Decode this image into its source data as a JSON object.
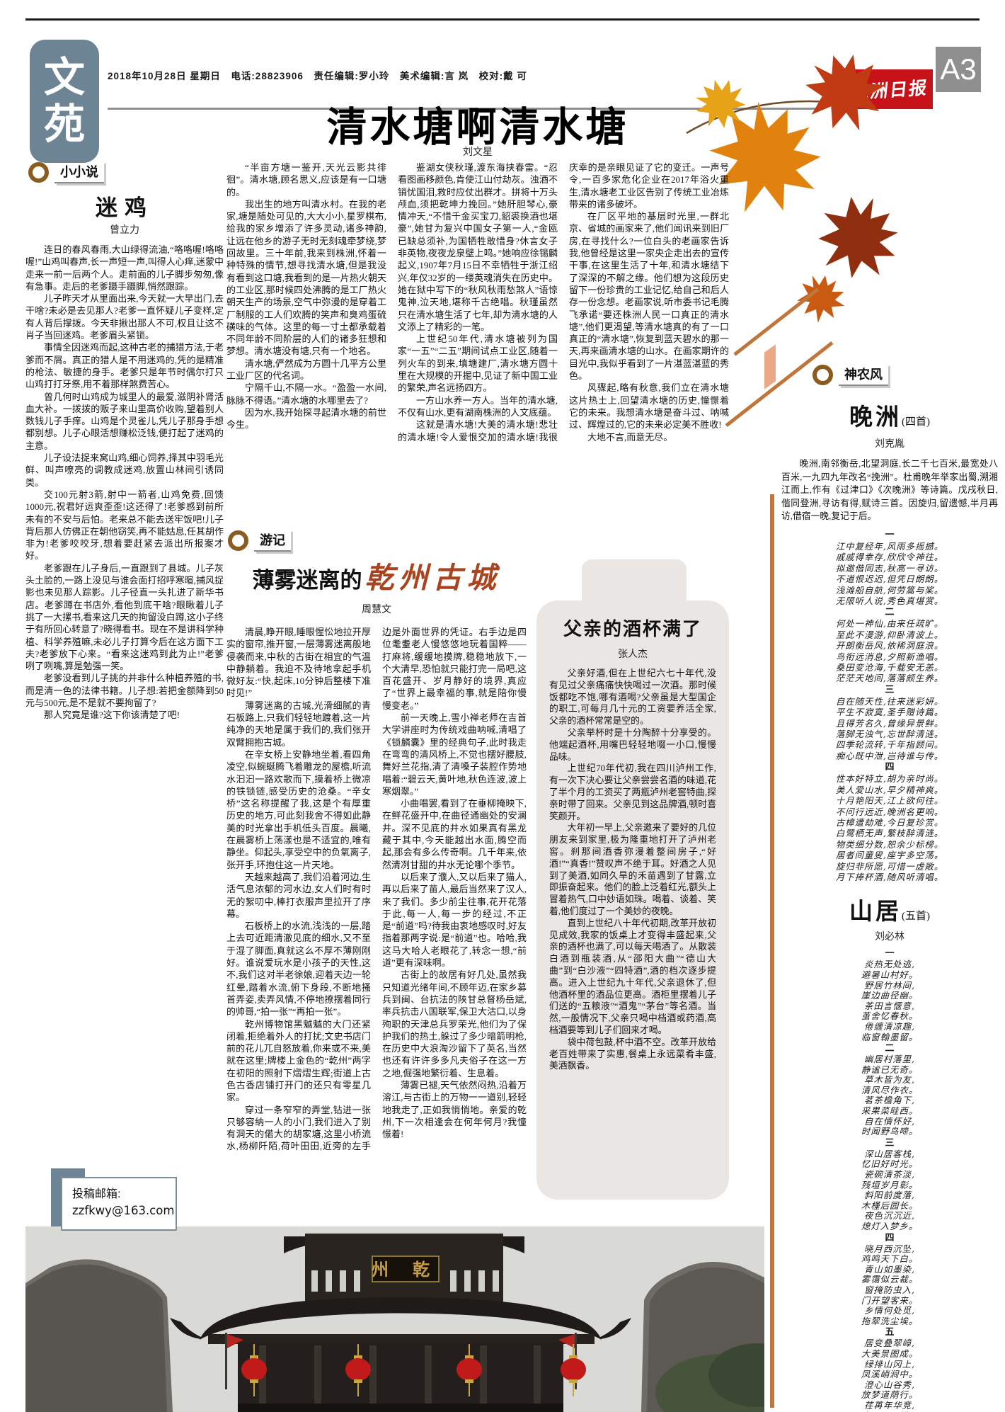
{
  "header": {
    "section_logo_chars": [
      "文",
      "苑"
    ],
    "dateline": "2018年10月28日 星期日　电话:28823906　责任编辑:罗小玲　美术编辑:言 岚　校对:戴 可",
    "paper_name": "株洲日报",
    "page_number": "A3"
  },
  "colors": {
    "brand_red": "#c81219",
    "page_badge_gray": "#8f8f8f",
    "logo_blue_gray": "#6d8494",
    "decor_orange": "#c0763a",
    "travel_title_red": "#a9441f",
    "essay_box_gray": "#e9e6e3",
    "label_brown": "#8a5c20"
  },
  "main_article": {
    "title": "清水塘啊清水塘",
    "author": "刘文星",
    "paragraphs": [
      "“半亩方塘一鉴开,天光云影共徘徊”。清水塘,顾名思义,应该是有一口塘的。",
      "我出生的地方叫清水村。在我的老家,塘是随处可见的,大大小小,星罗棋布,给我的家乡增添了许多灵动,诸多神韵,让远在他乡的游子无时无刻魂牵梦绕,梦回故里。三十年前,我来到株洲,怀着一种特殊的情节,想寻找清水塘,但是我没有看到这口塘,我看到的是一片热火朝天的工业区,那时候四处沸腾的是工厂热火朝天生产的场景,空气中弥漫的是穿着工厂制服的工人们欢腾的笑声和臭鸡蛋硫磺味的气体。这里的每一寸土都承载着不同年龄不同阶层的人们的诸多狂想和梦想。清水塘没有塘,只有一个地名。",
      "清水塘,俨然成为方圆十几平方公里工业厂区的代名词。",
      "宁隔千山,不隔一水。“盈盈一水间,脉脉不得语。”清水塘的水哪里去了?",
      "因为水,我开始探寻起清水塘的前世今生。",
      "鉴湖女侠秋瑾,渡东海挟春雷。“忍看图画移颜色,肯使江山付劫灰。浊酒不销忧国泪,救时应仗出群才。拼将十万头颅血,须把乾坤力挽回。”她肝胆琴心,豪情冲天,“不惜千金买宝刀,貂裘换酒也堪豪”,她甘为复兴中国女子第一人,“金瓯已缺总须补,为国牺牲敢惜身?休言女子非英物,夜夜龙泉壁上鸣。”她响应徐锡麟起义,1907年7月15日不幸牺牲于浙江绍兴,年仅32岁的一缕英魂消失在历史中。她在狱中写下的“秋风秋雨愁煞人”语惊鬼神,泣天地,堪称千古绝唱。秋瑾虽然只在清水塘生活了七年,却为清水塘的人文添上了精彩的一笔。",
      "上世纪50年代,清水塘被列为国家“一五”“二五”期间试点工业区,随着一列火车的到来,填塘建厂,清水塘方圆十里在大规模的开掘中,见证了新中国工业的繁荣,声名远扬四方。",
      "一方山水养一方人。当年的清水塘,不仅有山水,更有湖南株洲的人文底蕴。",
      "这就是清水塘!大美的清水塘!悲壮的清水塘!令人爱恨交加的清水塘!我很庆幸的是亲眼见证了它的变迁。一声号令,一百多家危化企业在2017年浴火重生,清水塘老工业区告别了传统工业冶炼带来的诸多破坏。",
      "在厂区平地的基层时光里,一群北京、省城的画家来了,他们闻讯来到旧厂房,在寻找什么?一位白头的老画家告诉我,他曾经是这里一家央企走出去的宣传干事,在这里生活了十年,和清水塘结下了深深的不解之缘。他们想为这段历史留下一份珍贵的工业记忆,给自己和后人存一份念想。老画家说,听市委书记毛腾飞承诺“要还株洲人民一口真正的清水塘”,他们更渴望,等清水塘真的有了一口真正的“清水塘”,恢复到蓝天碧水的那一天,再来画清水塘的山水。在画家期许的目光中,我似乎看到了一片湛蓝湛蓝的秀色。",
      "风骤起,略有秋意,我们立在清水塘这片热土上,回望清水塘的历史,憧憬着它的未来。我想清水塘是奋斗过、呐喊过、辉煌过的,它的未来必定美不胜收!",
      "大地不言,而意无尽。"
    ]
  },
  "fiction": {
    "label": "小小说",
    "title": "迷鸡",
    "author": "曾立力",
    "paragraphs": [
      "连日的春风春雨,大山绿得流油,“咯咯喔!咯咯喔!”山鸡叫春声,长一声短一声,叫得人心痒,迷蒙中走来一前一后两个人。走前面的儿子脚步匆匆,像有急事。走后的老爹蹑手蹑脚,悄然跟踪。",
      "儿子昨天才从里面出来,今天就一大早出门,去干啥?未必是去见那人?老爹一直怀疑儿子变样,定有人背后撑拨。今天非揪出那人不可,权且让这不肖子当回迷鸡。老爹眉头紧锁。",
      "事情全因迷鸡而起,这种古老的捕猎方法,于老爹而不屑。真正的猎人是不用迷鸡的,凭的是精准的枪法、敏捷的身手。老爹只是年节时偶尔打只山鸡打打牙祭,用不着那样煞费苦心。",
      "曾几何时山鸡成为城里人的最爱,滋阴补肾活血大补。一拨拨的贩子来山里高价收购,望着别人数钱儿子手痒。山鸡是个灵雀儿,凭儿子那身手想都别想。儿子心眼活想赚松泛钱,便打起了迷鸡的主意。",
      "儿子设法捉来窝山鸡,细心饲养,择其中羽毛光鲜、叫声嘹亮的调教成迷鸡,放置山林间引诱同类。",
      "交100元射3箭,射中一箭者,山鸡免费,回馈1000元,祝君好运爽歪歪!这还得了!老爹感到前所未有的不安与后怕。老来总不能去送牢饭吧!儿子背后那人仿佛正在朝他窃笑,再不能姑息,任其胡作非为!老爹咬咬牙,想着要赶紧去派出所报案才好。",
      "老爹跟在儿子身后,一直跟到了县城。儿子灰头土脸的,一路上没见与谁会面打招呼寒暄,捕风捉影也未见那人踪影。儿子径直一头扎进了新华书店。老爹蹲在书店外,看他到底干啥?眼瞅着儿子挑了一大摞书,看来这几天的拘留没白蹲,这小子终于有所回心转意了?晓得看书。现在不是讲科学种植、科学养殖嘛,未必儿子打算今后在这方面下工夫?老爹放下心来。“看来这迷鸡到此为止!”老爹咧了咧嘴,算是勉强一笑。",
      "老爹没看到儿子挑的并非什么种植养殖的书,而是清一色的法律书籍。儿子想:若把金额降到50元与500元,是不是就不要拘留了?",
      "那人究竟是谁?这下你该清楚了吧!"
    ]
  },
  "travel": {
    "label": "游记",
    "title_prefix": "薄雾迷离的",
    "title_highlight": "乾州古城",
    "author": "周慧文",
    "paragraphs": [
      "清晨,睁开眼,睡眼惺忪地拉开厚实的窗帘,推开窗,一层薄雾迷离般地侵袭而来,中秋的古街在相宜的气温中静躺着。我迫不及待地拿起手机微好友:“快,起床,10分钟后整楼下准时见!”",
      "薄雾迷离的古城,光滑细腻的青石板路上,只我们轻轻地踱着,这一片纯净的天地是属于我们的,我们张开双臂拥抱古城。",
      "在辛女桥上安静地坐着,看四角凌空,似蜿蜒腾飞着雕龙的屋檐,听流水汩汩一路欢歌而下,摸着桥上微凉的铁锁链,感受历史的沧桑。“辛女桥”这名称提醒了我,这是个有厚重历史的地方,可此刻我舍不得如此静美的时光拿出手机低头百度。晨曦,在晨雾桥上荡漾也是不适宜的,唯有静坐。仰起头,享受空中的负氧离子,张开手,环抱住这一片天地。",
      "天越来越高了,我们沿着河边,生活气息浓郁的河水边,女人们时有时无的絮叨中,棒打衣服声里拉开了序幕。",
      "石板桥上的水流,浅浅的一层,踏上去可近距清澈见底的细水,又不至于湿了脚面,真就这么不厚不薄刚刚好。谁说爱玩水是小孩子的天性,这不,我们这对半老徐娘,迎着天边一轮红晕,踏着水流,俯下身段,不断地搔首弄姿,卖弄风情,不停地撩摆着同行的帅哥,“拍一张”“再拍一张”。",
      "乾州博物馆黑魆魆的大门还紧闭着,拒绝着外人的打扰;文史书店门前的花儿兀自怒放着,你来或不来,美就在这里;牌楼上金色的“乾州”两字在初阳的照射下熠熠生辉;街道上古色古香店铺打开门的还只有零星几家。",
      "穿过一条窄窄的弄堂,钻进一张只够容纳一人的小门,我们进入了别有洞天的偌大的胡家塘,这里小桥流水,杨柳阡陌,荷叶田田,近旁的左手边是外面世界的凭证。右手边是四位耄耋老人慢悠悠地玩着国粹——打麻将,缓缓地摸牌,稳稳地放下,一个大清早,恐怕就只能打完一局吧,这百花盛开、岁月静好的境界,真应了“世界上最幸福的事,就是陪你慢慢变老。”",
      "前一天晚上,雪小禅老师在吉首大学讲座时为传统戏曲呐喊,清唱了《锁麟囊》里的经典句子,此时我走在弯弯的清风桥上,不觉也摆好腰肢,舞好兰花指,清了清嗓子装腔作势地唱着:“碧云天,黄叶地,秋色连波,波上寒烟翠。”",
      "小曲唱罢,看到了在垂柳掩映下,在鲜花盛开中,在曲径通幽处的安澜井。深不见底的井水如果真有黑龙藏于其中,今天能越出水面,腾空而起,那会有多么传奇啊。几千年来,依然清冽甘甜的井水无论哪个季节。",
      "以后来了濮人,又以后来了猫人,再以后来了苗人,最后当然来了汉人,来了我们。多少前尘往事,花开花落于此,每一人,每一步的经过,不正是“前道”吗?待我由衷地感叹时,好友指着那两字说:是“前道”也。哈哈,我这马大哈人老眼花了,转念一想,“前道”更有深味啊。",
      "古街上的故居有好几处,虽然我只知道光绪年间,不顾年迈,在家乡募兵到闽、台抗法的陕甘总督杨岳斌,率兵抗击八国联军,保卫大沽口,以身殉职的天津总兵罗荣光,他们为了保护我们的热土,躲过了多少暗箭明枪,在历史中大浪淘沙留下了英名,当然也还有许许多多凡夫俗子在这一方之地,倔强地繁衍着、生息着。",
      "薄雾已褪,天气依然闷热,沿着万溶江,与古街上的万物一一道别,轻轻地我走了,正如我悄悄地。亲爱的乾州,下一次相逢会在何年何月?我憧憬着!"
    ]
  },
  "essay": {
    "title": "父亲的酒杯满了",
    "author": "张人杰",
    "paragraphs": [
      "父亲好酒,但在上世纪六七十年代,没有见过父亲痛痛快快喝过一次酒。那时候饭都吃不饱,哪有酒喝?父亲虽是大型国企的职工,可每月几十元的工资要养活全家,父亲的酒杯常常是空的。",
      "父亲举杯时是十分陶醉十分享受的。他端起酒杯,用嘴巴轻轻地啜一小口,慢慢品味。",
      "上世纪70年代初,我在四川泸州工作,有一次下决心要让父亲尝尝名酒的味道,花了半个月的工资买了两瓶泸州老窖特曲,探亲时带了回来。父亲见到这品牌酒,顿时喜笑颜开。",
      "大年初一早上,父亲邀来了要好的几位朋友来到家里,极为隆重地打开了泸州老窖。刹那间酒香弥漫着整间房子,“好酒!”“真香!”赞叹声不绝于耳。好酒之人见到了美酒,如同久旱的禾苗遇到了甘露,立即振奋起来。他们的脸上泛着红光,额头上冒着热气,口中妙语如珠。喝着、谈着、笑着,他们度过了一个美妙的夜晚。",
      "直到上世纪八十年代初期,改革开放初见成效,我家的饭桌上才变得丰盛起来,父亲的酒杯也满了,可以每天喝酒了。从散装白酒到瓶装酒,从“邵阳大曲”“德山大曲”到“白沙液”“四特酒”,酒的档次逐步提高。进入上世纪九十年代,父亲退休了,但他酒杯里的酒品位更高。酒柜里摆着儿子们送的“五粮液”“酒鬼”“茅台”等名酒。当然,一般情况下,父亲只喝中档酒或药酒,高档酒要等到儿子们回来才喝。",
      "袋中荷包鼓,杯中酒不空。改革开放给老百姓带来了实惠,餐桌上永远菜肴丰盛,美酒飘香。"
    ]
  },
  "poetry": {
    "label": "神农风",
    "poems": [
      {
        "title": "晚洲",
        "subtitle": "(四首)",
        "author": "刘克胤",
        "preface": "晚洲,南邻衡岳,北望洞庭,长二千七百米,最宽处八百米,一九四九年改名“挽洲”。杜甫晚年举家出蜀,溯湘江而上,作有《过津口》《次晚洲》等诗篇。戊戌秋日,偕同登洲,寻访有得,赋诗三首。因旋归,留遗憾,半月再访,借宿一晚,复记于后。",
        "stanzas": [
          {
            "no": "一",
            "lines": [
              "江中复经年,风雨多摇撼。",
              "戚戚得幸存,欣欣令神往。",
              "拟邀偕同志,秋高一寻访。",
              "不道恨迟迟,但凭日朗朗。",
              "浅滩船自航,何劳篙与桨。",
              "无限听人说,秀色真堪赏。"
            ]
          },
          {
            "no": "二",
            "lines": [
              "何处一神仙,由来任疏旷。",
              "至此不漫游,仰卧清波上。",
              "开朗衡岳风,依稀洞庭浪。",
              "鸟衔远消息,夕照新渔唱。",
              "桑田变沧海,千载安无恙。",
              "茫茫天地间,落落颇生养。"
            ]
          },
          {
            "no": "三",
            "lines": [
              "自在随天性,往来迷彩妍。",
              "平生不寂寞,圣手赠诗篇。",
              "且得芳名久,曾缘异景鲜。",
              "落脚无浊气,忘世醉清涟。",
              "四季轮流转,千年指顾间。",
              "痴心既中泄,岂待谁与传。"
            ]
          },
          {
            "no": "四",
            "lines": [
              "性本好特立,胡为亲时尚。",
              "美人爱山水,早夕精神爽。",
              "十月艳阳天,江上欲何往。",
              "不问行远近,晚洲名更响。",
              "古樟遭劫难,今日复珍赏。",
              "白鹭栖无声,繁枝醉清涟。",
              "物类细分数,恕余少标榜。",
              "居者间童叟,座宇多空荡。",
              "旋归非所愿,可惜一虚敞。",
              "月下捧杯酒,随风听清唱。"
            ]
          }
        ]
      },
      {
        "title": "山居",
        "subtitle": "(五首)",
        "author": "刘必林",
        "preface": "",
        "stanzas": [
          {
            "no": "一",
            "lines": [
              "炎热无处逃,",
              "避暑山村好。",
              "野居竹林间,",
              "崖边曲径幽。",
              "茶田言惬意,",
              "茧舍忆春秋。",
              "倦缠清凉趣,",
              "临窗翰墨留。"
            ]
          },
          {
            "no": "二",
            "lines": [
              "幽居村落里,",
              "静谧已无奇。",
              "草木皆为友,",
              "清风尽作衣。",
              "茗茶檐角下,",
              "采果菜畦西。",
              "自在情怀好,",
              "时闻野鸟啼。"
            ]
          },
          {
            "no": "三",
            "lines": [
              "深山居客栈,",
              "忆旧好时光。",
              "瓷碗清茶淡,",
              "残垣岁月彰。",
              "斜阳前度落,",
              "木槿后园长。",
              "夜色沉沉近,",
              "熄灯入梦乡。"
            ]
          },
          {
            "no": "四",
            "lines": [
              "晓月西沉坠,",
              "鸡鸣天下白。",
              "青山如墨染,",
              "雾霭似云裁。",
              "窗掩防虫入,",
              "门开望客来。",
              "乡情何处觅,",
              "拖翠洗尘埃。"
            ]
          },
          {
            "no": "五",
            "lines": [
              "居变叠翠嶂,",
              "大美景图成。",
              "绿排山冈上,",
              "凤溪峭涧中。",
              "澄心山谷秀,",
              "放梦道荫行。",
              "荏苒年华竞,",
              "白云天际横。"
            ]
          }
        ]
      }
    ]
  },
  "submission": {
    "label": "投稿邮箱:",
    "email": "zzfkwy@163.com"
  },
  "photo": {
    "plaque": "州 乾"
  }
}
